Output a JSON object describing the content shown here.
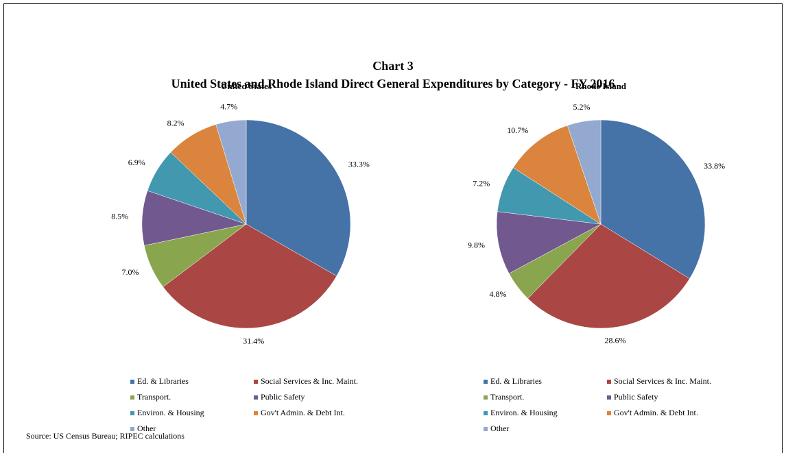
{
  "title": "Chart 3",
  "subtitle": "United States and Rhode Island Direct General Expenditures by Category - FY 2016",
  "source": "Source: US Census Bureau; RIPEC calculations",
  "chart_data": [
    {
      "type": "pie",
      "title": "United States",
      "categories": [
        "Ed. & Libraries",
        "Social Services & Inc. Maint.",
        "Transport.",
        "Public Safety",
        "Environ. & Housing",
        "Gov't Admin. & Debt Int.",
        "Other"
      ],
      "values": [
        33.3,
        31.4,
        7.0,
        8.5,
        6.9,
        8.2,
        4.7
      ],
      "value_labels": [
        "33.3%",
        "31.4%",
        "7.0%",
        "8.5%",
        "6.9%",
        "8.2%",
        "4.7%"
      ],
      "colors": [
        "#4572a7",
        "#aa4643",
        "#89a54e",
        "#71588f",
        "#4198af",
        "#db843d",
        "#93a9cf"
      ]
    },
    {
      "type": "pie",
      "title": "Rhode Island",
      "categories": [
        "Ed. & Libraries",
        "Social Services & Inc. Maint.",
        "Transport.",
        "Public Safety",
        "Environ. & Housing",
        "Gov't Admin. & Debt Int.",
        "Other"
      ],
      "values": [
        33.8,
        28.6,
        4.8,
        9.8,
        7.2,
        10.7,
        5.2
      ],
      "value_labels": [
        "33.8%",
        "28.6%",
        "4.8%",
        "9.8%",
        "7.2%",
        "10.7%",
        "5.2%"
      ],
      "colors": [
        "#4572a7",
        "#aa4643",
        "#89a54e",
        "#71588f",
        "#4198af",
        "#db843d",
        "#93a9cf"
      ]
    }
  ]
}
